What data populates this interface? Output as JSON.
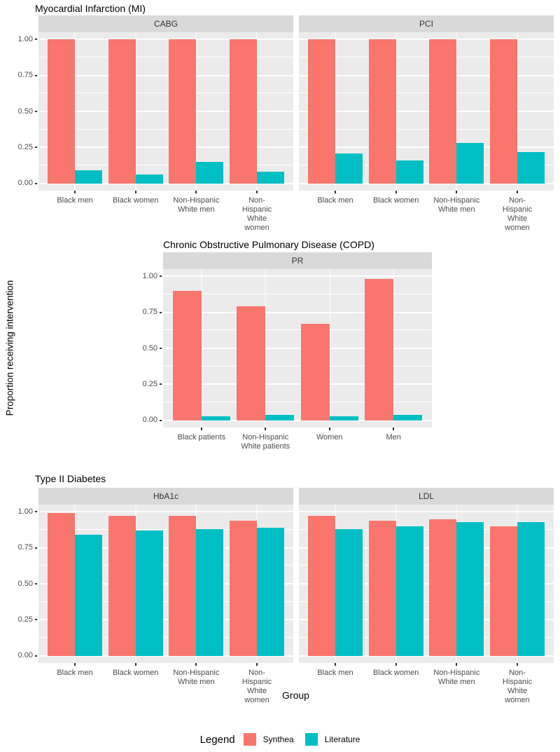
{
  "colors": {
    "synthea": "#F8766D",
    "literature": "#00BFC4",
    "panel_background": "#EBEBEB",
    "strip_background": "#D9D9D9",
    "gridline": "#FFFFFF",
    "axis_text": "#4D4D4D",
    "tick_mark": "#333333",
    "title_text": "#000000"
  },
  "y_axis_title": "Proportion receiving intervention",
  "x_axis_title": "Group",
  "y_ticks": [
    {
      "v": 1.0,
      "label": "1.00"
    },
    {
      "v": 0.75,
      "label": "0.75"
    },
    {
      "v": 0.5,
      "label": "0.50"
    },
    {
      "v": 0.25,
      "label": "0.25"
    },
    {
      "v": 0.0,
      "label": "0.00"
    }
  ],
  "legend": {
    "title": "Legend",
    "entries": [
      {
        "label": "Synthea",
        "color": "#F8766D"
      },
      {
        "label": "Literature",
        "color": "#00BFC4"
      }
    ]
  },
  "chart_data": [
    {
      "type": "bar",
      "title": "Myocardial Infarction (MI)",
      "ylim": [
        0,
        1
      ],
      "facets": [
        {
          "label": "CABG",
          "categories": [
            "Black men",
            "Black women",
            "Non-Hispanic\nWhite men",
            "Non-Hispanic\nWhite women"
          ],
          "series": [
            {
              "name": "Synthea",
              "color": "#F8766D",
              "values": [
                1.0,
                1.0,
                1.0,
                1.0
              ]
            },
            {
              "name": "Literature",
              "color": "#00BFC4",
              "values": [
                0.09,
                0.06,
                0.15,
                0.08
              ]
            }
          ]
        },
        {
          "label": "PCI",
          "categories": [
            "Black men",
            "Black women",
            "Non-Hispanic\nWhite men",
            "Non-Hispanic\nWhite women"
          ],
          "series": [
            {
              "name": "Synthea",
              "color": "#F8766D",
              "values": [
                1.0,
                1.0,
                1.0,
                1.0
              ]
            },
            {
              "name": "Literature",
              "color": "#00BFC4",
              "values": [
                0.21,
                0.16,
                0.28,
                0.22
              ]
            }
          ]
        }
      ]
    },
    {
      "type": "bar",
      "title": "Chronic Obstructive Pulmonary Disease (COPD)",
      "ylim": [
        0,
        1
      ],
      "facets": [
        {
          "label": "PR",
          "categories": [
            "Black patients",
            "Non-Hispanic\nWhite patients",
            "Women",
            "Men"
          ],
          "series": [
            {
              "name": "Synthea",
              "color": "#F8766D",
              "values": [
                0.9,
                0.79,
                0.67,
                0.98
              ]
            },
            {
              "name": "Literature",
              "color": "#00BFC4",
              "values": [
                0.03,
                0.04,
                0.03,
                0.04
              ]
            }
          ]
        }
      ]
    },
    {
      "type": "bar",
      "title": "Type II Diabetes",
      "ylim": [
        0,
        1
      ],
      "facets": [
        {
          "label": "HbA1c",
          "categories": [
            "Black men",
            "Black women",
            "Non-Hispanic\nWhite men",
            "Non-Hispanic\nWhite women"
          ],
          "series": [
            {
              "name": "Synthea",
              "color": "#F8766D",
              "values": [
                0.99,
                0.97,
                0.97,
                0.94
              ]
            },
            {
              "name": "Literature",
              "color": "#00BFC4",
              "values": [
                0.84,
                0.87,
                0.88,
                0.89
              ]
            }
          ]
        },
        {
          "label": "LDL",
          "categories": [
            "Black men",
            "Black women",
            "Non-Hispanic\nWhite men",
            "Non-Hispanic\nWhite women"
          ],
          "series": [
            {
              "name": "Synthea",
              "color": "#F8766D",
              "values": [
                0.97,
                0.94,
                0.95,
                0.9
              ]
            },
            {
              "name": "Literature",
              "color": "#00BFC4",
              "values": [
                0.88,
                0.9,
                0.93,
                0.93
              ]
            }
          ]
        }
      ]
    }
  ]
}
